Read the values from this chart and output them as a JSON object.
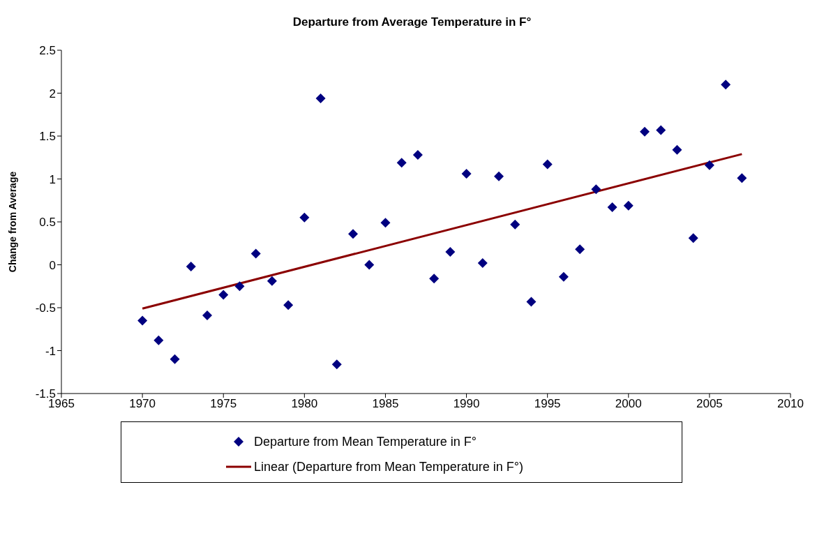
{
  "chart_data": {
    "type": "scatter",
    "title": "Departure from Average Temperature in F°",
    "ylabel": "Change from Average",
    "xlim": [
      1965,
      2010
    ],
    "xticks": [
      1965,
      1970,
      1975,
      1980,
      1985,
      1990,
      1995,
      2000,
      2005,
      2010
    ],
    "ylim": [
      -1.5,
      2.5
    ],
    "yticks": [
      -1.5,
      -1,
      -0.5,
      0,
      0.5,
      1,
      1.5,
      2,
      2.5
    ],
    "grid": false,
    "legend": "bottom",
    "series": [
      {
        "name": "Departure from Mean Temperature in F°",
        "marker": "diamond",
        "color": "#000080",
        "x": [
          1970,
          1971,
          1972,
          1973,
          1974,
          1975,
          1976,
          1977,
          1978,
          1979,
          1980,
          1981,
          1982,
          1983,
          1984,
          1985,
          1986,
          1987,
          1988,
          1989,
          1990,
          1991,
          1992,
          1993,
          1994,
          1995,
          1996,
          1997,
          1998,
          1999,
          2000,
          2001,
          2002,
          2003,
          2004,
          2005,
          2006,
          2007
        ],
        "values": [
          -0.65,
          -0.88,
          -1.1,
          -0.02,
          -0.59,
          -0.35,
          -0.25,
          0.13,
          -0.19,
          -0.47,
          0.55,
          1.94,
          -1.16,
          0.36,
          0,
          0.49,
          1.19,
          1.28,
          -0.16,
          0.15,
          1.06,
          0.02,
          1.03,
          0.47,
          -0.43,
          1.17,
          -0.14,
          0.18,
          0.88,
          0.67,
          0.69,
          1.55,
          1.57,
          1.34,
          0.31,
          1.16,
          2.1,
          1.01
        ]
      },
      {
        "name": "Linear (Departure from Mean Temperature in F°)",
        "type": "line",
        "marker": "none",
        "color": "#8b0000",
        "line_style": "solid",
        "x": [
          1970,
          2007
        ],
        "values": [
          -0.51,
          1.29
        ]
      }
    ]
  }
}
